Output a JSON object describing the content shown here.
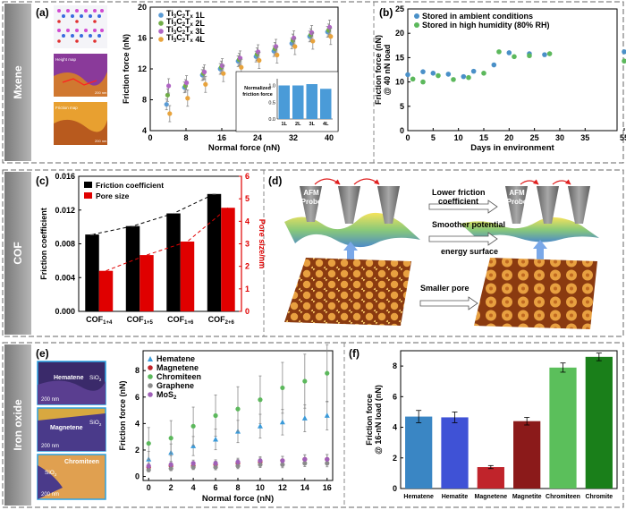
{
  "rows": [
    "Mxene",
    "COF",
    "Iron oxide"
  ],
  "panels": {
    "a": {
      "label": "(a)",
      "img_labels": [
        "Height map",
        "Friction map"
      ],
      "scale": "200 nm",
      "legend": [
        "Ti3C2Tx 1L",
        "Ti3C2Tx 2L",
        "Ti3C2Tx 3L",
        "Ti3C2Tx 4L"
      ],
      "legend_main": "Ti",
      "legend_sub1": "3",
      "legend_mid": "C",
      "legend_sub2": "2",
      "legend_mid2": "T",
      "legend_subx": "x",
      "legend_layers": [
        "1L",
        "2L",
        "3L",
        "4L"
      ],
      "xlabel": "Normal force (nN)",
      "ylabel": "Friction force (nN)",
      "inset_ylabel": [
        "Normalized",
        "friction force"
      ],
      "inset_cats": [
        "1L",
        "2L",
        "3L",
        "4L"
      ],
      "inset_ticks": [
        "0.0",
        "0.5",
        "1.0"
      ]
    },
    "b": {
      "label": "(b)",
      "legend": [
        "Stored in ambient conditions",
        "Stored in high humidity (80% RH)"
      ],
      "xlabel": "Days in environment",
      "ylabel": [
        "Friction force (nN)",
        "@ 40 nN load"
      ]
    },
    "c": {
      "label": "(c)",
      "legend": [
        "Friction coefficient",
        "Pore size"
      ],
      "ylabel_left": "Friction coefficient",
      "ylabel_right": "Pore size/nm",
      "cats_base": [
        "COF",
        "COF",
        "COF",
        "COF"
      ],
      "cats_sub": [
        "1+4",
        "1+5",
        "1+6",
        "2+6"
      ]
    },
    "d": {
      "label": "(d)",
      "probe": [
        "AFM",
        "Probe"
      ],
      "texts": [
        "Lower friction",
        "coefficient",
        "Smoother potential",
        "energy surface",
        "Smaller pore"
      ]
    },
    "e": {
      "label": "(e)",
      "img_labels": [
        "Hematene",
        "Magnetene",
        "Chromiteen"
      ],
      "sio2": "SiO2",
      "sio_main": "SiO",
      "sio_sub": "2",
      "scale": "200 nm",
      "legend": [
        "Hematene",
        "Magnetene",
        "Chromiteen",
        "Graphene",
        "MoS2"
      ],
      "mos_main": "MoS",
      "mos_sub": "2",
      "xlabel": "Normal force (nN)",
      "ylabel": "Friction force (nN)"
    },
    "f": {
      "label": "(f)",
      "ylabel": [
        "Friction force",
        "@ 16-nN load (nN)"
      ]
    }
  },
  "chart_data": [
    {
      "id": "a",
      "type": "scatter",
      "xlim": [
        0,
        42
      ],
      "ylim": [
        4,
        20
      ],
      "xticks": [
        0,
        8,
        16,
        24,
        32,
        40
      ],
      "yticks": [
        4,
        8,
        12,
        16,
        20
      ],
      "series": [
        {
          "name": "Ti3C2Tx 1L",
          "color": "#5a9bd5",
          "x": [
            4,
            8,
            12,
            16,
            20,
            24,
            28,
            32,
            36,
            40
          ],
          "y": [
            7.4,
            9.6,
            11.2,
            12.0,
            13.0,
            13.6,
            14.3,
            15.3,
            16.2,
            16.8
          ]
        },
        {
          "name": "Ti3C2Tx 2L",
          "color": "#70ad47",
          "x": [
            4,
            8,
            12,
            16,
            20,
            24,
            28,
            32,
            36,
            40
          ],
          "y": [
            8.6,
            9.8,
            11.4,
            12.2,
            13.2,
            13.9,
            14.6,
            15.7,
            16.4,
            17.0
          ]
        },
        {
          "name": "Ti3C2Tx 3L",
          "color": "#b065c4",
          "x": [
            4,
            8,
            12,
            16,
            20,
            24,
            28,
            32,
            36,
            40
          ],
          "y": [
            9.8,
            10.2,
            11.6,
            12.4,
            13.4,
            14.2,
            14.9,
            16.0,
            16.7,
            17.4
          ]
        },
        {
          "name": "Ti3C2Tx 4L",
          "color": "#e8a33c",
          "x": [
            4,
            8,
            12,
            16,
            20,
            24,
            28,
            32,
            36,
            40
          ],
          "y": [
            6.2,
            8.2,
            10.0,
            11.4,
            12.2,
            13.1,
            13.8,
            14.9,
            15.6,
            16.2
          ]
        }
      ],
      "inset": {
        "type": "bar",
        "categories": [
          "1L",
          "2L",
          "3L",
          "4L"
        ],
        "values": [
          1.0,
          1.0,
          1.04,
          0.9
        ],
        "ylim": [
          0,
          1.2
        ]
      }
    },
    {
      "id": "b",
      "type": "scatter",
      "xlim": [
        0,
        57
      ],
      "ylim": [
        0,
        25
      ],
      "xticks": [
        0,
        5,
        10,
        15,
        20,
        25,
        30,
        35,
        55
      ],
      "xticklabels": [
        "0",
        "5",
        "10",
        "15",
        "20",
        "25",
        "30",
        "35",
        "55"
      ],
      "yticks": [
        0,
        5,
        10,
        15,
        20,
        25
      ],
      "series": [
        {
          "name": "Stored in ambient conditions",
          "color": "#4a90c8",
          "x": [
            0,
            3,
            5,
            8,
            11,
            13,
            17,
            20,
            24,
            27,
            55
          ],
          "y": [
            11.5,
            12.1,
            11.8,
            11.6,
            11.1,
            12.2,
            13.5,
            16.0,
            15.8,
            15.6,
            16.2
          ]
        },
        {
          "name": "Stored in high humidity (80% RH)",
          "color": "#5cb85c",
          "x": [
            1,
            3,
            6,
            9,
            12,
            15,
            18,
            21,
            24,
            28,
            55
          ],
          "y": [
            10.6,
            10.0,
            11.3,
            10.5,
            10.9,
            11.8,
            16.2,
            15.2,
            15.4,
            15.8,
            14.3
          ]
        }
      ]
    },
    {
      "id": "c",
      "type": "bar",
      "categories": [
        "COF1+4",
        "COF1+5",
        "COF1+6",
        "COF2+6"
      ],
      "series": [
        {
          "name": "Friction coefficient",
          "color": "#000000",
          "values": [
            0.0091,
            0.0101,
            0.0116,
            0.0139
          ],
          "axis": "left"
        },
        {
          "name": "Pore size",
          "color": "#e00000",
          "values": [
            1.8,
            2.5,
            3.1,
            4.6
          ],
          "axis": "right"
        }
      ],
      "ylim_left": [
        0,
        0.016
      ],
      "yticks_left": [
        "0.000",
        "0.004",
        "0.008",
        "0.012",
        "0.016"
      ],
      "ylim_right": [
        0,
        6
      ],
      "yticks_right": [
        "0",
        "1",
        "2",
        "3",
        "4",
        "5",
        "6"
      ]
    },
    {
      "id": "e",
      "type": "scatter",
      "xlim": [
        -0.5,
        16.5
      ],
      "ylim": [
        -0.3,
        9.5
      ],
      "xticks": [
        0,
        2,
        4,
        6,
        8,
        10,
        12,
        14,
        16
      ],
      "yticks": [
        0,
        2,
        4,
        6,
        8
      ],
      "series": [
        {
          "name": "Hematene",
          "color": "#3a9ad9",
          "marker": "triangle",
          "x": [
            0,
            2,
            4,
            6,
            8,
            10,
            12,
            14,
            16
          ],
          "y": [
            1.3,
            1.8,
            2.3,
            2.8,
            3.4,
            3.8,
            4.1,
            4.4,
            4.6
          ]
        },
        {
          "name": "Magnetene",
          "color": "#c0242b",
          "marker": "circle",
          "x": [
            0,
            2,
            4,
            6,
            8,
            10,
            12,
            14,
            16
          ],
          "y": [
            0.7,
            0.8,
            0.8,
            0.9,
            1.0,
            1.1,
            1.2,
            1.3,
            1.3
          ]
        },
        {
          "name": "Chromiteen",
          "color": "#5cb85c",
          "marker": "circle",
          "x": [
            0,
            2,
            4,
            6,
            8,
            10,
            12,
            14,
            16
          ],
          "y": [
            2.5,
            2.9,
            3.8,
            4.6,
            5.1,
            5.8,
            6.7,
            7.2,
            7.8
          ]
        },
        {
          "name": "Graphene",
          "color": "#8c8c8c",
          "marker": "circle",
          "x": [
            0,
            2,
            4,
            6,
            8,
            10,
            12,
            14,
            16
          ],
          "y": [
            0.5,
            0.6,
            0.7,
            0.7,
            0.8,
            0.9,
            0.9,
            1.0,
            1.0
          ]
        },
        {
          "name": "MoS2",
          "color": "#a060b8",
          "marker": "circle",
          "x": [
            0,
            2,
            4,
            6,
            8,
            10,
            12,
            14,
            16
          ],
          "y": [
            0.8,
            0.9,
            1.0,
            1.0,
            1.1,
            1.2,
            1.2,
            1.3,
            1.3
          ]
        }
      ]
    },
    {
      "id": "f",
      "type": "bar",
      "categories": [
        "Hematene",
        "Hematite",
        "Magnetene",
        "Magnetite",
        "Chromiteen",
        "Chromite"
      ],
      "values": [
        4.7,
        4.65,
        1.4,
        4.4,
        7.9,
        8.6
      ],
      "colors": [
        "#3a86c4",
        "#3f52d6",
        "#c0242b",
        "#8b1a1a",
        "#5bbf5b",
        "#1a7f1a"
      ],
      "ylim": [
        0,
        9
      ],
      "yticks": [
        0,
        2,
        4,
        6,
        8
      ]
    }
  ]
}
